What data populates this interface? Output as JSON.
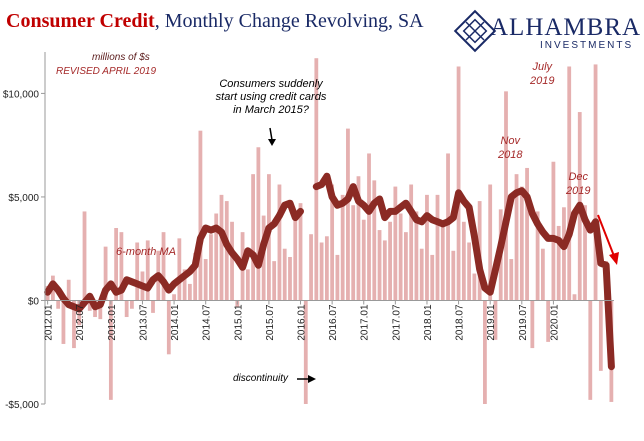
{
  "title": {
    "main": "Consumer Credit",
    "rest": ", Monthly Change Revolving, SA"
  },
  "logo": {
    "name": "ALHAMBRA",
    "sub": "INVESTMENTS"
  },
  "notes": {
    "units": "millions of $s",
    "revised": "REVISED APRIL 2019",
    "ma_label": "6-month MA",
    "consumers": [
      "Consumers suddenly",
      "start using credit cards",
      "in March 2015?"
    ],
    "discontinuity": "discontinuity",
    "nov": [
      "Nov",
      "2018"
    ],
    "july": [
      "July",
      "2019"
    ],
    "dec": [
      "Dec",
      "2019"
    ]
  },
  "colors": {
    "bar": "#e5b0b0",
    "ma": "#8b2a24",
    "title_red": "#c00000",
    "title_navy": "#1a2a66",
    "annot_red": "#a52a2a",
    "arrow": "#e00000"
  },
  "chart_data": {
    "type": "bar",
    "ylim": [
      -5000,
      12000
    ],
    "yticks": [
      -5000,
      0,
      5000,
      10000
    ],
    "ytick_labels": [
      "-$5,000",
      "$0",
      "$5,000",
      "$10,000"
    ],
    "xtick_labels": [
      "2012.01",
      "2012.07",
      "2013.01",
      "2013.07",
      "2014.01",
      "2014.07",
      "2015.01",
      "2015.07",
      "2016.01",
      "2016.07",
      "2017.01",
      "2017.07",
      "2018.01",
      "2018.07",
      "2019.01",
      "2019.07",
      "2020.01"
    ],
    "grid": false,
    "series": [
      {
        "type": "bar",
        "values": [
          700,
          1200,
          -400,
          -2100,
          1000,
          -2300,
          -1200,
          4300,
          -500,
          -800,
          -900,
          2600,
          -4800,
          3500,
          3300,
          -800,
          -400,
          2800,
          1400,
          2900,
          -600,
          2400,
          3300,
          -2600,
          300,
          3000,
          1500,
          800,
          2300,
          8200,
          2000,
          3200,
          4200,
          5100,
          4800,
          3800,
          -300,
          3300,
          1500,
          6100,
          7400,
          4100,
          6100,
          1900,
          5600,
          2500,
          2100,
          4300,
          4700,
          -5000,
          3200,
          11700,
          2800,
          3100,
          5600,
          2200,
          5100,
          8300,
          4600,
          6000,
          3900,
          7100,
          5800,
          3400,
          2900,
          3800,
          5500,
          4200,
          3300,
          5600,
          4300,
          2500,
          5100,
          2200,
          5100,
          3800,
          7100,
          2400,
          11300,
          3800,
          2800,
          1300,
          4800,
          -5000,
          5600,
          -1900,
          4400,
          10100,
          2000,
          6100,
          5500,
          6400,
          -2300,
          4300,
          2500,
          -2000,
          6700,
          3600,
          4500,
          11300,
          300,
          9100,
          4600,
          -4800,
          11400,
          -3400,
          1900,
          -4900
        ]
      },
      {
        "type": "line",
        "values": [
          400,
          800,
          500,
          100,
          -200,
          -300,
          -400,
          -100,
          200,
          -300,
          -200,
          500,
          800,
          400,
          500,
          1000,
          900,
          800,
          700,
          600,
          1000,
          1200,
          900,
          500,
          800,
          1000,
          1200,
          1400,
          1700,
          3000,
          3500,
          3400,
          3500,
          3300,
          2700,
          2300,
          2000,
          1600,
          2400,
          2200,
          1700,
          2700,
          3500,
          3700,
          4100,
          4600,
          4700,
          4000,
          4300,
          null,
          null,
          5500,
          5600,
          6000,
          5000,
          4600,
          4700,
          4900,
          5500,
          4800,
          4600,
          4300,
          4700,
          4900,
          4000,
          4300,
          4300,
          4500,
          4700,
          4300,
          3900,
          3800,
          4100,
          3900,
          3800,
          3700,
          3800,
          4000,
          5200,
          4800,
          4500,
          3100,
          1500,
          600,
          400,
          1500,
          2600,
          3800,
          5000,
          5200,
          5300,
          5000,
          4200,
          3700,
          3300,
          3000,
          3000,
          2900,
          2600,
          3200,
          4200,
          4600,
          3900,
          3400,
          3800,
          1800,
          1700,
          -3200
        ]
      }
    ]
  }
}
